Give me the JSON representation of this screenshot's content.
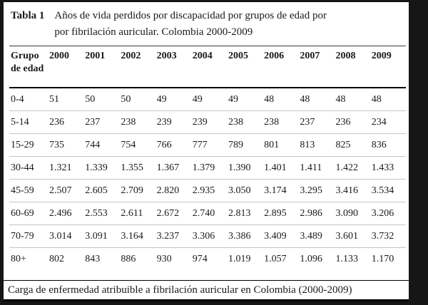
{
  "title": {
    "label": "Tabla 1",
    "caption_line1": "Años de vida perdidos por discapacidad por grupos de edad por",
    "caption_line2": "por fibrilación auricular. Colombia 2000-2009"
  },
  "table": {
    "group_header": "Grupo de edad",
    "years": [
      "2000",
      "2001",
      "2002",
      "2003",
      "2004",
      "2005",
      "2006",
      "2007",
      "2008",
      "2009"
    ],
    "rows": [
      {
        "group": "0-4",
        "values": [
          "51",
          "50",
          "50",
          "49",
          "49",
          "49",
          "48",
          "48",
          "48",
          "48"
        ]
      },
      {
        "group": "5-14",
        "values": [
          "236",
          "237",
          "238",
          "239",
          "239",
          "238",
          "238",
          "237",
          "236",
          "234"
        ]
      },
      {
        "group": "15-29",
        "values": [
          "735",
          "744",
          "754",
          "766",
          "777",
          "789",
          "801",
          "813",
          "825",
          "836"
        ]
      },
      {
        "group": "30-44",
        "values": [
          "1.321",
          "1.339",
          "1.355",
          "1.367",
          "1.379",
          "1.390",
          "1.401",
          "1.411",
          "1.422",
          "1.433"
        ]
      },
      {
        "group": "45-59",
        "values": [
          "2.507",
          "2.605",
          "2.709",
          "2.820",
          "2.935",
          "3.050",
          "3.174",
          "3.295",
          "3.416",
          "3.534"
        ]
      },
      {
        "group": "60-69",
        "values": [
          "2.496",
          "2.553",
          "2.611",
          "2.672",
          "2.740",
          "2.813",
          "2.895",
          "2.986",
          "3.090",
          "3.206"
        ]
      },
      {
        "group": "70-79",
        "values": [
          "3.014",
          "3.091",
          "3.164",
          "3.237",
          "3.306",
          "3.386",
          "3.409",
          "3.489",
          "3.601",
          "3.732"
        ]
      },
      {
        "group": "80+",
        "values": [
          "802",
          "843",
          "886",
          "930",
          "974",
          "1.019",
          "1.057",
          "1.096",
          "1.133",
          "1.170"
        ]
      }
    ]
  },
  "footer": {
    "caption": "Carga de enfermedad atribuible a fibrilación auricular en Colombia (2000-2009)"
  },
  "colors": {
    "frame": "#161616",
    "page": "#ffffff",
    "text": "#1a1a1a",
    "header_rule": "#000000",
    "row_divider": "#c4c4c4"
  }
}
